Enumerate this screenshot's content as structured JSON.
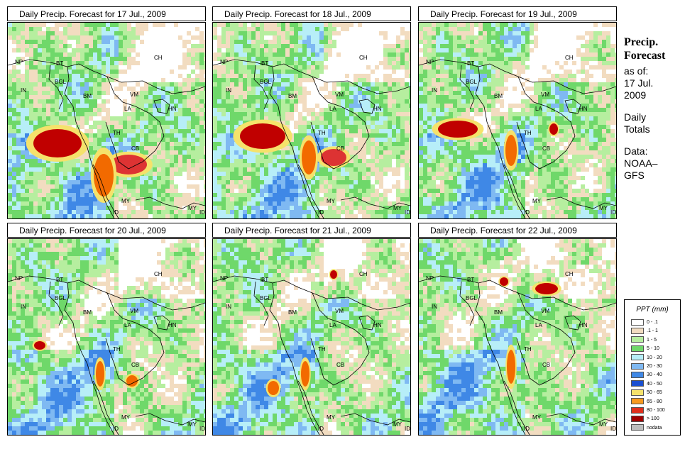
{
  "panels": [
    {
      "title": "Daily Precip. Forecast for  17 Jul., 2009",
      "seed": 17,
      "blobs": [
        [
          70,
          170,
          34,
          20,
          "#c00000"
        ],
        [
          170,
          200,
          26,
          14,
          "#d33"
        ],
        [
          135,
          215,
          14,
          30,
          "#f26a00"
        ]
      ]
    },
    {
      "title": "Daily Precip. Forecast for  18 Jul., 2009",
      "seed": 18,
      "blobs": [
        [
          70,
          160,
          32,
          18,
          "#c00000"
        ],
        [
          170,
          190,
          18,
          12,
          "#d33"
        ],
        [
          135,
          190,
          10,
          24,
          "#f26a00"
        ]
      ]
    },
    {
      "title": "Daily Precip. Forecast for  19 Jul., 2009",
      "seed": 19,
      "blobs": [
        [
          55,
          150,
          28,
          12,
          "#c00000"
        ],
        [
          130,
          180,
          8,
          22,
          "#f26a00"
        ],
        [
          190,
          150,
          6,
          8,
          "#c00000"
        ]
      ]
    },
    {
      "title": "Daily Precip. Forecast for  20 Jul., 2009",
      "seed": 20,
      "blobs": [
        [
          45,
          150,
          8,
          6,
          "#c00000"
        ],
        [
          130,
          190,
          6,
          18,
          "#f26a00"
        ],
        [
          175,
          200,
          8,
          8,
          "#f26a00"
        ]
      ]
    },
    {
      "title": "Daily Precip. Forecast for  21 Jul., 2009",
      "seed": 21,
      "blobs": [
        [
          170,
          50,
          5,
          6,
          "#c00000"
        ],
        [
          85,
          210,
          8,
          10,
          "#f26a00"
        ],
        [
          130,
          190,
          6,
          18,
          "#f26a00"
        ]
      ]
    },
    {
      "title": "Daily Precip. Forecast for  22 Jul., 2009",
      "seed": 22,
      "blobs": [
        [
          180,
          70,
          16,
          8,
          "#c00000"
        ],
        [
          120,
          60,
          6,
          6,
          "#c00000"
        ],
        [
          130,
          180,
          6,
          24,
          "#f26a00"
        ]
      ]
    }
  ],
  "region_labels": [
    "NP",
    "BT",
    "IN",
    "BGL",
    "BM",
    "CH",
    "VM",
    "LA",
    "HN",
    "TH",
    "CB",
    "MY",
    "ID",
    "MY",
    "ID"
  ],
  "sidebar": {
    "title_line1": "Precip.",
    "title_line2": "Forecast",
    "asof_label": "as of:",
    "asof_date1": "17 Jul.",
    "asof_date2": "2009",
    "totals1": "Daily",
    "totals2": "Totals",
    "data1": "Data:",
    "data2": "NOAA–",
    "data3": "GFS"
  },
  "legend": {
    "title": "PPT (mm)",
    "items": [
      {
        "label": "0 - .1",
        "color": "#ffffff"
      },
      {
        "label": ".1 - 1",
        "color": "#f2dcc0"
      },
      {
        "label": "1 - 5",
        "color": "#b6ee9f"
      },
      {
        "label": "5 - 10",
        "color": "#6fd86a"
      },
      {
        "label": "10 - 20",
        "color": "#b7eef8"
      },
      {
        "label": "20 - 30",
        "color": "#7fb9f2"
      },
      {
        "label": "30 - 40",
        "color": "#3f88e6"
      },
      {
        "label": "40 - 50",
        "color": "#1a4fd1"
      },
      {
        "label": "50 - 65",
        "color": "#f5e26b"
      },
      {
        "label": "65 - 80",
        "color": "#f79a1f"
      },
      {
        "label": "80 - 100",
        "color": "#e0301c"
      },
      {
        "label": "> 100",
        "color": "#a00000"
      },
      {
        "label": "nodata",
        "color": "#bdbdbd"
      }
    ]
  }
}
